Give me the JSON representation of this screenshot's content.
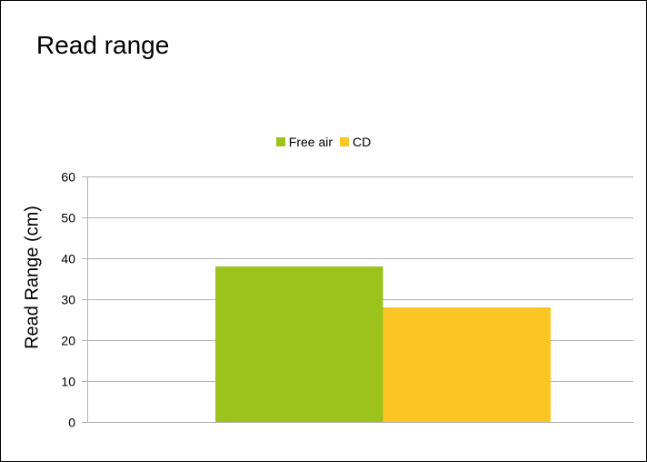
{
  "chart_data": {
    "type": "bar",
    "title": "Read range",
    "xlabel": "",
    "ylabel": "Read Range (cm)",
    "categories": [
      ""
    ],
    "series": [
      {
        "name": "Free air",
        "values": [
          38
        ],
        "color": "#9BC31C"
      },
      {
        "name": "CD",
        "values": [
          28
        ],
        "color": "#FBC523"
      }
    ],
    "ylim": [
      0,
      60
    ],
    "yticks": [
      0,
      10,
      20,
      30,
      40,
      50,
      60
    ],
    "grid": true,
    "legend_position": "top"
  }
}
